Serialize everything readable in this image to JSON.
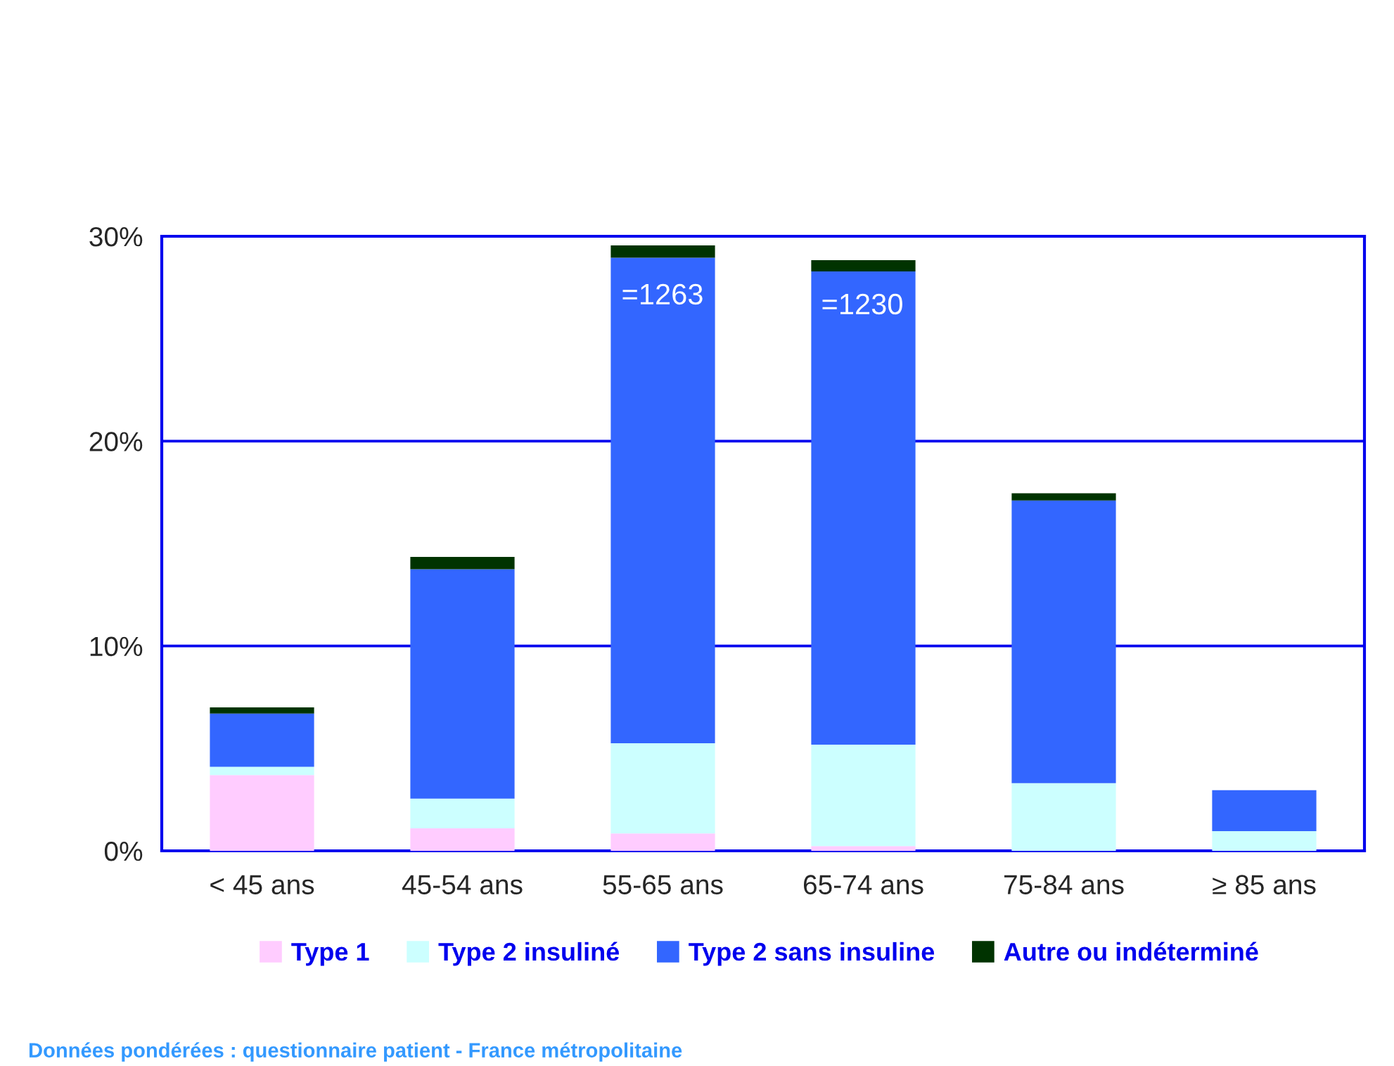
{
  "chart_data": {
    "type": "bar",
    "stacked": true,
    "categories": [
      "< 45 ans",
      "45-54 ans",
      "55-65 ans",
      "65-74 ans",
      "75-84 ans",
      "≥ 85 ans"
    ],
    "series": [
      {
        "name": "Type 1",
        "color": "#ffccff",
        "values": [
          3.7,
          1.1,
          0.85,
          0.23,
          0,
          0
        ]
      },
      {
        "name": "Type 2 insuliné",
        "color": "#ccffff",
        "values": [
          0.4,
          1.45,
          4.4,
          4.95,
          3.3,
          0.96
        ]
      },
      {
        "name": "Type 2 sans insuline",
        "color": "#3366ff",
        "values": [
          2.6,
          11.2,
          23.7,
          23.1,
          13.8,
          2.0
        ]
      },
      {
        "name": "Autre ou indéterminé",
        "color": "#003300",
        "values": [
          0.3,
          0.6,
          0.6,
          0.55,
          0.35,
          0
        ]
      }
    ],
    "ylim": [
      0,
      30
    ],
    "yticks": [
      {
        "value": 0,
        "label": "0%"
      },
      {
        "value": 10,
        "label": "10%"
      },
      {
        "value": 20,
        "label": "20%"
      },
      {
        "value": 30,
        "label": "30%"
      }
    ],
    "grid": "y",
    "legend": "bottom",
    "annotations": [
      "=1263",
      "=1230",
      "Données pondérées : questionnaire patient - France métropolitaine"
    ]
  }
}
